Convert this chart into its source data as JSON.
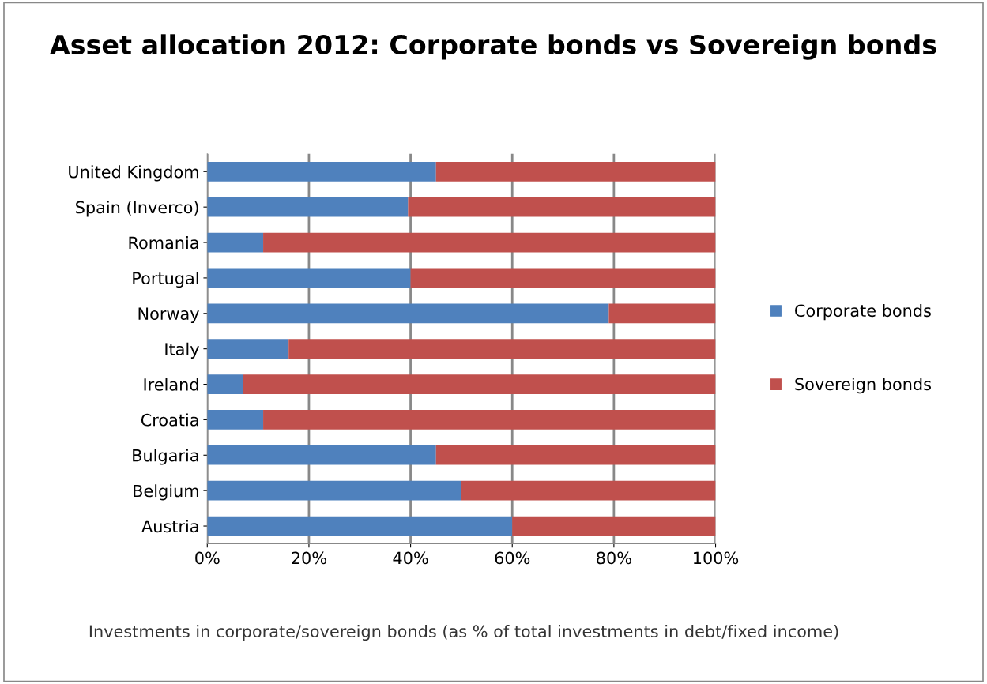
{
  "chart_data": {
    "type": "bar",
    "orientation": "horizontal",
    "stacked": true,
    "title": "Asset allocation 2012: Corporate bonds vs Sovereign bonds",
    "xlabel": "Investments in corporate/sovereign bonds (as % of total investments in debt/fixed income)",
    "categories": [
      "United Kingdom",
      "Spain (Inverco)",
      "Romania",
      "Portugal",
      "Norway",
      "Italy",
      "Ireland",
      "Croatia",
      "Bulgaria",
      "Belgium",
      "Austria"
    ],
    "series": [
      {
        "name": "Corporate bonds",
        "color": "#4f81bd",
        "values": [
          45,
          39.5,
          11,
          40,
          79,
          16,
          7,
          11,
          45,
          50,
          60
        ]
      },
      {
        "name": "Sovereign bonds",
        "color": "#c0504d",
        "values": [
          55,
          60.5,
          89,
          60,
          21,
          84,
          93,
          89,
          55,
          50,
          40
        ]
      }
    ],
    "xlim": [
      0,
      100
    ],
    "xticks": [
      {
        "value": 0,
        "label": "0%"
      },
      {
        "value": 20,
        "label": "20%"
      },
      {
        "value": 40,
        "label": "40%"
      },
      {
        "value": 60,
        "label": "60%"
      },
      {
        "value": 80,
        "label": "80%"
      },
      {
        "value": 100,
        "label": "100%"
      }
    ],
    "grid": "x",
    "legend": "right"
  }
}
